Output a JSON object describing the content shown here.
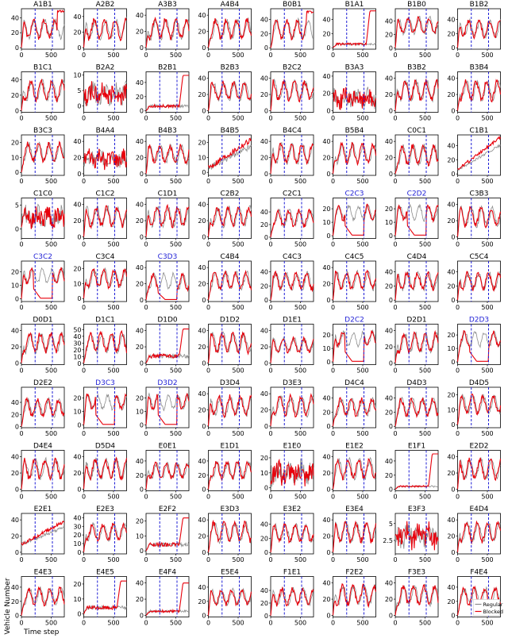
{
  "figure": {
    "ylabel": "Vehicle Number",
    "xlabel": "Time step",
    "colors": {
      "regular": "#8c8c8c",
      "blocked": "#e8000b",
      "marker": "#1f1fd6",
      "highlight_title": "#1f1fd6",
      "title": "#000000"
    },
    "legend": {
      "panel": "F4E4",
      "position": "lower-right",
      "entries": [
        "Regular",
        "Blocked"
      ]
    }
  },
  "chart_data": {
    "type": "line",
    "xlabel": "Time step",
    "ylabel": "Vehicle Number",
    "x_range": [
      0,
      720
    ],
    "x_ticks": [
      0,
      500
    ],
    "block_markers_x": [
      230,
      520
    ],
    "series_names": [
      "Regular",
      "Blocked"
    ],
    "panels": [
      {
        "title": "A1B1",
        "highlight": false,
        "yticks": [
          0,
          20,
          40
        ],
        "ymax": 52,
        "shape": "osc",
        "base": 14,
        "amp": 22,
        "end": 50
      },
      {
        "title": "A2B2",
        "highlight": false,
        "yticks": [
          0,
          20,
          40
        ],
        "ymax": 50,
        "shape": "osc",
        "base": 12,
        "amp": 24
      },
      {
        "title": "A3B3",
        "highlight": false,
        "yticks": [
          0,
          20,
          40
        ],
        "ymax": 48,
        "shape": "osc",
        "base": 12,
        "amp": 22
      },
      {
        "title": "A4B4",
        "highlight": false,
        "yticks": [
          0,
          20,
          40
        ],
        "ymax": 48,
        "shape": "osc",
        "base": 12,
        "amp": 22
      },
      {
        "title": "B0B1",
        "highlight": false,
        "yticks": [
          0,
          20,
          40
        ],
        "ymax": 55,
        "shape": "osc",
        "base": 14,
        "amp": 24,
        "end": 52
      },
      {
        "title": "B1A1",
        "highlight": false,
        "yticks": [
          0,
          20,
          40
        ],
        "ymax": 55,
        "shape": "flat",
        "base": 6,
        "end": 52
      },
      {
        "title": "B1B0",
        "highlight": false,
        "yticks": [
          0,
          20,
          40
        ],
        "ymax": 58,
        "shape": "osc",
        "base": 22,
        "amp": 22
      },
      {
        "title": "B1B2",
        "highlight": false,
        "yticks": [
          0,
          20,
          40
        ],
        "ymax": 55,
        "shape": "osc",
        "base": 16,
        "amp": 22
      },
      {
        "title": "B1C1",
        "highlight": false,
        "yticks": [
          0,
          20,
          40
        ],
        "ymax": 50,
        "shape": "osc",
        "base": 14,
        "amp": 24
      },
      {
        "title": "B2A2",
        "highlight": false,
        "yticks": [
          0,
          5,
          10
        ],
        "ymax": 11,
        "shape": "noisy",
        "base": 4,
        "amp": 3
      },
      {
        "title": "B2B1",
        "highlight": false,
        "yticks": [
          0,
          20,
          40
        ],
        "ymax": 55,
        "shape": "flat",
        "base": 8,
        "end": 50
      },
      {
        "title": "B2B3",
        "highlight": false,
        "yticks": [
          0,
          20,
          40
        ],
        "ymax": 48,
        "shape": "osc",
        "base": 14,
        "amp": 20
      },
      {
        "title": "B2C2",
        "highlight": false,
        "yticks": [
          0,
          20,
          40
        ],
        "ymax": 48,
        "shape": "osc",
        "base": 14,
        "amp": 22
      },
      {
        "title": "B3A3",
        "highlight": false,
        "yticks": [
          0,
          20,
          40
        ],
        "ymax": 45,
        "shape": "noisy",
        "base": 14,
        "amp": 10
      },
      {
        "title": "B3B2",
        "highlight": false,
        "yticks": [
          0,
          20,
          40
        ],
        "ymax": 48,
        "shape": "osc",
        "base": 14,
        "amp": 22
      },
      {
        "title": "B3B4",
        "highlight": false,
        "yticks": [
          0,
          20,
          40
        ],
        "ymax": 48,
        "shape": "osc",
        "base": 14,
        "amp": 22
      },
      {
        "title": "B3C3",
        "highlight": false,
        "yticks": [
          0,
          10,
          20
        ],
        "ymax": 25,
        "shape": "osc",
        "base": 8,
        "amp": 11
      },
      {
        "title": "B4A4",
        "highlight": false,
        "yticks": [
          0,
          20,
          40
        ],
        "ymax": 48,
        "shape": "noisy",
        "base": 18,
        "amp": 10
      },
      {
        "title": "B4B3",
        "highlight": false,
        "yticks": [
          0,
          20,
          40
        ],
        "ymax": 48,
        "shape": "osc",
        "base": 14,
        "amp": 20
      },
      {
        "title": "B4B5",
        "highlight": false,
        "yticks": [
          0,
          10,
          20
        ],
        "ymax": 25,
        "shape": "ramp",
        "base": 3,
        "end": 22
      },
      {
        "title": "B4C4",
        "highlight": false,
        "yticks": [
          0,
          20,
          40
        ],
        "ymax": 48,
        "shape": "osc",
        "base": 14,
        "amp": 22
      },
      {
        "title": "B5B4",
        "highlight": false,
        "yticks": [
          0,
          20,
          40
        ],
        "ymax": 48,
        "shape": "osc",
        "base": 14,
        "amp": 22
      },
      {
        "title": "C0C1",
        "highlight": false,
        "yticks": [
          0,
          20,
          40
        ],
        "ymax": 48,
        "shape": "osc",
        "base": 12,
        "amp": 22
      },
      {
        "title": "C1B1",
        "highlight": false,
        "yticks": [
          0,
          20,
          40
        ],
        "ymax": 55,
        "shape": "ramp",
        "base": 6,
        "end": 52
      },
      {
        "title": "C1C0",
        "highlight": false,
        "yticks": [
          0,
          5
        ],
        "ymax": 6.5,
        "shape": "noisy",
        "base": 2.5,
        "amp": 2
      },
      {
        "title": "C1C2",
        "highlight": false,
        "yticks": [
          0,
          20,
          40
        ],
        "ymax": 48,
        "shape": "osc",
        "base": 14,
        "amp": 22
      },
      {
        "title": "C1D1",
        "highlight": false,
        "yticks": [
          0,
          20,
          40
        ],
        "ymax": 48,
        "shape": "osc",
        "base": 14,
        "amp": 22
      },
      {
        "title": "C2B2",
        "highlight": false,
        "yticks": [
          0,
          20,
          40
        ],
        "ymax": 48,
        "shape": "osc",
        "base": 14,
        "amp": 22
      },
      {
        "title": "C2C1",
        "highlight": false,
        "yticks": [
          0,
          20,
          40
        ],
        "ymax": 62,
        "shape": "osc",
        "base": 18,
        "amp": 24
      },
      {
        "title": "C2C3",
        "highlight": true,
        "yticks": [
          0,
          10,
          20
        ],
        "ymax": 28,
        "shape": "drop",
        "base": 12,
        "amp": 10
      },
      {
        "title": "C2D2",
        "highlight": true,
        "yticks": [
          0,
          10,
          20
        ],
        "ymax": 28,
        "shape": "drop",
        "base": 12,
        "amp": 10
      },
      {
        "title": "C3B3",
        "highlight": false,
        "yticks": [
          0,
          20,
          40
        ],
        "ymax": 48,
        "shape": "osc",
        "base": 14,
        "amp": 22
      },
      {
        "title": "C3C2",
        "highlight": true,
        "yticks": [
          0,
          10,
          20
        ],
        "ymax": 28,
        "shape": "drop",
        "base": 12,
        "amp": 10
      },
      {
        "title": "C3C4",
        "highlight": false,
        "yticks": [
          0,
          10,
          20
        ],
        "ymax": 25,
        "shape": "osc",
        "base": 8,
        "amp": 11
      },
      {
        "title": "C3D3",
        "highlight": true,
        "yticks": [
          0,
          20,
          40
        ],
        "ymax": 48,
        "shape": "drop",
        "base": 14,
        "amp": 18
      },
      {
        "title": "C4B4",
        "highlight": false,
        "yticks": [
          0,
          20,
          40
        ],
        "ymax": 48,
        "shape": "osc",
        "base": 14,
        "amp": 20
      },
      {
        "title": "C4C3",
        "highlight": false,
        "yticks": [
          0,
          20,
          40
        ],
        "ymax": 55,
        "shape": "osc",
        "base": 16,
        "amp": 22
      },
      {
        "title": "C4C5",
        "highlight": false,
        "yticks": [
          0,
          20,
          40
        ],
        "ymax": 48,
        "shape": "osc",
        "base": 14,
        "amp": 20
      },
      {
        "title": "C4D4",
        "highlight": false,
        "yticks": [
          0,
          20,
          40
        ],
        "ymax": 55,
        "shape": "osc",
        "base": 16,
        "amp": 22
      },
      {
        "title": "C5C4",
        "highlight": false,
        "yticks": [
          0,
          20,
          40
        ],
        "ymax": 55,
        "shape": "osc",
        "base": 16,
        "amp": 22
      },
      {
        "title": "D0D1",
        "highlight": false,
        "yticks": [
          0,
          20,
          40
        ],
        "ymax": 48,
        "shape": "osc",
        "base": 14,
        "amp": 22
      },
      {
        "title": "D1C1",
        "highlight": false,
        "yticks": [
          0,
          10,
          20,
          30,
          40,
          50
        ],
        "ymax": 58,
        "shape": "osc",
        "base": 18,
        "amp": 26
      },
      {
        "title": "D1D0",
        "highlight": false,
        "yticks": [
          0,
          20,
          40
        ],
        "ymax": 48,
        "shape": "flat",
        "base": 10,
        "end": 42
      },
      {
        "title": "D1D2",
        "highlight": false,
        "yticks": [
          0,
          20,
          40
        ],
        "ymax": 48,
        "shape": "osc",
        "base": 14,
        "amp": 22
      },
      {
        "title": "D1E1",
        "highlight": false,
        "yticks": [
          0,
          20,
          40
        ],
        "ymax": 48,
        "shape": "osc",
        "base": 14,
        "amp": 16
      },
      {
        "title": "D2C2",
        "highlight": true,
        "yticks": [
          0,
          10,
          20
        ],
        "ymax": 28,
        "shape": "drop",
        "base": 12,
        "amp": 10
      },
      {
        "title": "D2D1",
        "highlight": false,
        "yticks": [
          0,
          20,
          40
        ],
        "ymax": 48,
        "shape": "osc",
        "base": 14,
        "amp": 22
      },
      {
        "title": "D2D3",
        "highlight": true,
        "yticks": [
          0,
          10,
          20
        ],
        "ymax": 28,
        "shape": "drop",
        "base": 12,
        "amp": 10
      },
      {
        "title": "D2E2",
        "highlight": false,
        "yticks": [
          0,
          20,
          40
        ],
        "ymax": 65,
        "shape": "osc",
        "base": 18,
        "amp": 26
      },
      {
        "title": "D3C3",
        "highlight": true,
        "yticks": [
          0,
          10,
          20
        ],
        "ymax": 28,
        "shape": "drop",
        "base": 12,
        "amp": 10
      },
      {
        "title": "D3D2",
        "highlight": true,
        "yticks": [
          0,
          10,
          20
        ],
        "ymax": 28,
        "shape": "drop",
        "base": 12,
        "amp": 10
      },
      {
        "title": "D3D4",
        "highlight": false,
        "yticks": [
          0,
          20,
          40
        ],
        "ymax": 48,
        "shape": "osc",
        "base": 14,
        "amp": 22
      },
      {
        "title": "D3E3",
        "highlight": false,
        "yticks": [
          0,
          20,
          40
        ],
        "ymax": 48,
        "shape": "osc",
        "base": 14,
        "amp": 22
      },
      {
        "title": "D4C4",
        "highlight": false,
        "yticks": [
          0,
          20,
          40
        ],
        "ymax": 55,
        "shape": "osc",
        "base": 16,
        "amp": 22
      },
      {
        "title": "D4D3",
        "highlight": false,
        "yticks": [
          0,
          20,
          40
        ],
        "ymax": 55,
        "shape": "osc",
        "base": 16,
        "amp": 22
      },
      {
        "title": "D4D5",
        "highlight": false,
        "yticks": [
          0,
          10,
          20
        ],
        "ymax": 25,
        "shape": "osc",
        "base": 8,
        "amp": 11
      },
      {
        "title": "D4E4",
        "highlight": false,
        "yticks": [
          0,
          20,
          40
        ],
        "ymax": 48,
        "shape": "osc",
        "base": 14,
        "amp": 22
      },
      {
        "title": "D5D4",
        "highlight": false,
        "yticks": [
          0,
          20,
          40
        ],
        "ymax": 48,
        "shape": "osc",
        "base": 14,
        "amp": 22
      },
      {
        "title": "E0E1",
        "highlight": false,
        "yticks": [
          0,
          20,
          40
        ],
        "ymax": 55,
        "shape": "osc",
        "base": 16,
        "amp": 20
      },
      {
        "title": "E1D1",
        "highlight": false,
        "yticks": [
          0,
          20,
          40
        ],
        "ymax": 55,
        "shape": "osc",
        "base": 16,
        "amp": 22
      },
      {
        "title": "E1E0",
        "highlight": false,
        "yticks": [
          0,
          10,
          20
        ],
        "ymax": 25,
        "shape": "noisy",
        "base": 10,
        "amp": 7
      },
      {
        "title": "E1E2",
        "highlight": false,
        "yticks": [
          0,
          20,
          40
        ],
        "ymax": 48,
        "shape": "osc",
        "base": 14,
        "amp": 22
      },
      {
        "title": "E1F1",
        "highlight": false,
        "yticks": [
          0,
          20,
          40
        ],
        "ymax": 55,
        "shape": "flat",
        "base": 5,
        "end": 50
      },
      {
        "title": "E2D2",
        "highlight": false,
        "yticks": [
          0,
          20,
          40
        ],
        "ymax": 48,
        "shape": "osc",
        "base": 14,
        "amp": 22
      },
      {
        "title": "E2E1",
        "highlight": false,
        "yticks": [
          0,
          20,
          40
        ],
        "ymax": 48,
        "shape": "ramp",
        "base": 10,
        "end": 38
      },
      {
        "title": "E2E3",
        "highlight": false,
        "yticks": [
          0,
          10,
          20,
          30,
          40
        ],
        "ymax": 45,
        "shape": "osc",
        "base": 14,
        "amp": 18
      },
      {
        "title": "E2F2",
        "highlight": false,
        "yticks": [
          0,
          10,
          20
        ],
        "ymax": 25,
        "shape": "flat",
        "base": 5,
        "end": 22
      },
      {
        "title": "E3D3",
        "highlight": false,
        "yticks": [
          0,
          20,
          40
        ],
        "ymax": 48,
        "shape": "osc",
        "base": 14,
        "amp": 22
      },
      {
        "title": "E3E2",
        "highlight": false,
        "yticks": [
          0,
          20,
          40
        ],
        "ymax": 55,
        "shape": "osc",
        "base": 16,
        "amp": 22
      },
      {
        "title": "E3E4",
        "highlight": false,
        "yticks": [
          0,
          20,
          40
        ],
        "ymax": 48,
        "shape": "osc",
        "base": 14,
        "amp": 22
      },
      {
        "title": "E3F3",
        "highlight": false,
        "yticks": [
          2.5,
          5.0
        ],
        "ymax": 6.5,
        "ymin": 0.5,
        "shape": "noisy",
        "base": 3.2,
        "amp": 1.6
      },
      {
        "title": "E4D4",
        "highlight": false,
        "yticks": [
          0,
          20,
          40
        ],
        "ymax": 48,
        "shape": "osc",
        "base": 14,
        "amp": 22
      },
      {
        "title": "E4E3",
        "highlight": false,
        "yticks": [
          0,
          20,
          40
        ],
        "ymax": 55,
        "shape": "osc",
        "base": 16,
        "amp": 22
      },
      {
        "title": "E4E5",
        "highlight": false,
        "yticks": [
          0,
          10,
          20
        ],
        "ymax": 25,
        "shape": "flat",
        "base": 5,
        "end": 22
      },
      {
        "title": "E4F4",
        "highlight": false,
        "yticks": [
          0,
          20,
          40
        ],
        "ymax": 48,
        "shape": "flat",
        "base": 6,
        "end": 40
      },
      {
        "title": "E5E4",
        "highlight": false,
        "yticks": [
          0,
          20,
          40
        ],
        "ymax": 55,
        "shape": "osc",
        "base": 16,
        "amp": 20
      },
      {
        "title": "F1E1",
        "highlight": false,
        "yticks": [
          0,
          20,
          40
        ],
        "ymax": 62,
        "shape": "osc",
        "base": 18,
        "amp": 24
      },
      {
        "title": "F2E2",
        "highlight": false,
        "yticks": [
          0,
          20,
          40
        ],
        "ymax": 48,
        "shape": "osc",
        "base": 14,
        "amp": 22
      },
      {
        "title": "F3E3",
        "highlight": false,
        "yticks": [
          0,
          20,
          40
        ],
        "ymax": 48,
        "shape": "osc",
        "base": 14,
        "amp": 22
      },
      {
        "title": "F4E4",
        "highlight": false,
        "yticks": [
          0,
          20,
          40
        ],
        "ymax": 55,
        "shape": "osc",
        "base": 16,
        "amp": 22
      }
    ]
  }
}
